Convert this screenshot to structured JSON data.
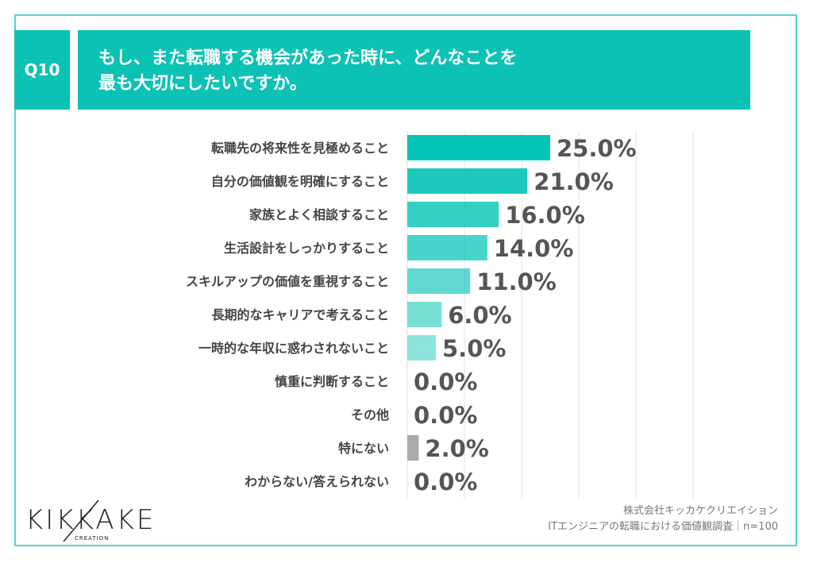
{
  "question": {
    "number": "Q10",
    "title_lines": [
      "もし、また転職する機会があった時に、どんなことを",
      "最も大切にしたいですか。"
    ]
  },
  "chart_data": {
    "type": "bar",
    "orientation": "horizontal",
    "categories": [
      "転職先の将来性を見極めること",
      "自分の価値観を明確にすること",
      "家族とよく相談すること",
      "生活設計をしっかりすること",
      "スキルアップの価値を重視すること",
      "長期的なキャリアで考えること",
      "一時的な年収に惑わされないこと",
      "慎重に判断すること",
      "その他",
      "特にない",
      "わからない/答えられない"
    ],
    "values": [
      25.0,
      21.0,
      16.0,
      14.0,
      11.0,
      6.0,
      5.0,
      0.0,
      0.0,
      2.0,
      0.0
    ],
    "labels": [
      "25.0%",
      "21.0%",
      "16.0%",
      "14.0%",
      "11.0%",
      "6.0%",
      "5.0%",
      "0.0%",
      "0.0%",
      "2.0%",
      "0.0%"
    ],
    "xlim": [
      0,
      50
    ],
    "grid": true,
    "unit": "%",
    "colors": {
      "primary": "#05c4b5",
      "neutral": "#aaaaaa",
      "grid": "#e2e2e2",
      "label": "#555555"
    }
  },
  "footer": {
    "logo_text": "KIKKAKE",
    "logo_sub": "CREATION",
    "company": "株式会社キッカケクリエイション",
    "survey": "ITエンジニアの転職における価値観調査｜n=100"
  }
}
